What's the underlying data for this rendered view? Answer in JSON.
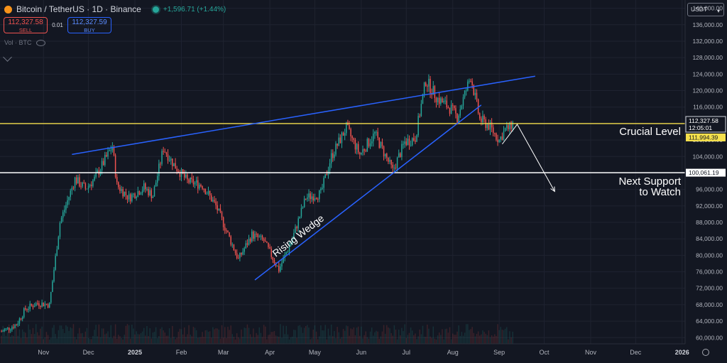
{
  "header": {
    "symbol": "Bitcoin / TetherUS · 1D · Binance",
    "change": "+1,596.71 (+1.44%)"
  },
  "trade": {
    "sell_price": "112,327.58",
    "sell_label": "SELL",
    "qty": "0.01",
    "buy_price": "112,327.59",
    "buy_label": "BUY"
  },
  "volume_label": "Vol · BTC",
  "currency_selector": "USDT",
  "colors": {
    "background": "#131722",
    "up": "#26a69a",
    "down": "#ef5350",
    "wedge_line": "#2962ff",
    "crucial_level": "#f5e04c",
    "support_level": "#ffffff",
    "projection": "#ffffff"
  },
  "chart_data": {
    "type": "candlestick",
    "series_name": "BTCUSDT 1D",
    "x_labels": [
      "Nov",
      "Dec",
      "2025",
      "Feb",
      "Mar",
      "Apr",
      "May",
      "Jun",
      "Jul",
      "Aug",
      "Sep",
      "Oct",
      "Nov",
      "Dec",
      "2026"
    ],
    "x_label_dates": [
      "2024-11-01",
      "2024-12-01",
      "2025-01-01",
      "2025-02-01",
      "2025-03-01",
      "2025-04-01",
      "2025-05-01",
      "2025-06-01",
      "2025-07-01",
      "2025-08-01",
      "2025-09-01",
      "2025-10-01",
      "2025-11-01",
      "2025-12-01",
      "2026-01-01"
    ],
    "y_ticks": [
      60000,
      64000,
      68000,
      72000,
      76000,
      80000,
      84000,
      88000,
      92000,
      96000,
      100000,
      104000,
      108000,
      112000,
      116000,
      120000,
      124000,
      128000,
      132000,
      136000,
      140000
    ],
    "ylim": [
      58500,
      142000
    ],
    "xlim": [
      "2024-10-03",
      "2026-01-03"
    ],
    "price_path": [
      [
        "2024-10-04",
        61500
      ],
      [
        "2024-10-14",
        63200
      ],
      [
        "2024-10-20",
        67000
      ],
      [
        "2024-10-28",
        68400
      ],
      [
        "2024-11-05",
        68000
      ],
      [
        "2024-11-12",
        88000
      ],
      [
        "2024-11-22",
        98500
      ],
      [
        "2024-11-29",
        96200
      ],
      [
        "2024-12-05",
        98500
      ],
      [
        "2024-12-17",
        106500
      ],
      [
        "2024-12-20",
        97000
      ],
      [
        "2024-12-28",
        94000
      ],
      [
        "2025-01-07",
        96500
      ],
      [
        "2025-01-13",
        94500
      ],
      [
        "2025-01-20",
        106000
      ],
      [
        "2025-01-27",
        102000
      ],
      [
        "2025-02-05",
        98000
      ],
      [
        "2025-02-15",
        97000
      ],
      [
        "2025-02-24",
        92000
      ],
      [
        "2025-03-03",
        86000
      ],
      [
        "2025-03-11",
        79000
      ],
      [
        "2025-03-20",
        85000
      ],
      [
        "2025-03-28",
        83500
      ],
      [
        "2025-04-07",
        76500
      ],
      [
        "2025-04-16",
        84000
      ],
      [
        "2025-04-25",
        94000
      ],
      [
        "2025-05-05",
        95000
      ],
      [
        "2025-05-12",
        104000
      ],
      [
        "2025-05-22",
        111000
      ],
      [
        "2025-05-31",
        104500
      ],
      [
        "2025-06-10",
        109500
      ],
      [
        "2025-06-22",
        100500
      ],
      [
        "2025-06-30",
        107500
      ],
      [
        "2025-07-07",
        108500
      ],
      [
        "2025-07-14",
        122500
      ],
      [
        "2025-07-22",
        118000
      ],
      [
        "2025-07-31",
        115500
      ],
      [
        "2025-08-04",
        113500
      ],
      [
        "2025-08-13",
        123500
      ],
      [
        "2025-08-19",
        113000
      ],
      [
        "2025-08-25",
        111500
      ],
      [
        "2025-09-01",
        108000
      ],
      [
        "2025-09-05",
        110500
      ],
      [
        "2025-09-08",
        111000
      ],
      [
        "2025-09-10",
        112327.58
      ]
    ],
    "annotations": {
      "crucial_level": {
        "label": "Crucial Level",
        "price": 111994.39,
        "price_label": "111,994.39"
      },
      "support_level": {
        "label_line1": "Next Support",
        "label_line2": "to Watch",
        "price": 100061.19,
        "price_label": "100,061.19"
      },
      "last_price": {
        "price": 112327.58,
        "price_label": "112,327.58",
        "countdown": "12:05:01"
      },
      "pattern_label": "Rising Wedge",
      "wedge_upper": [
        [
          "2024-11-20",
          104500
        ],
        [
          "2025-09-25",
          123500
        ]
      ],
      "wedge_lower": [
        [
          "2025-03-22",
          74000
        ],
        [
          "2025-08-20",
          116500
        ]
      ],
      "projection": [
        [
          "2025-09-03",
          107000
        ],
        [
          "2025-09-13",
          111800
        ],
        [
          "2025-10-08",
          95500
        ]
      ]
    }
  }
}
